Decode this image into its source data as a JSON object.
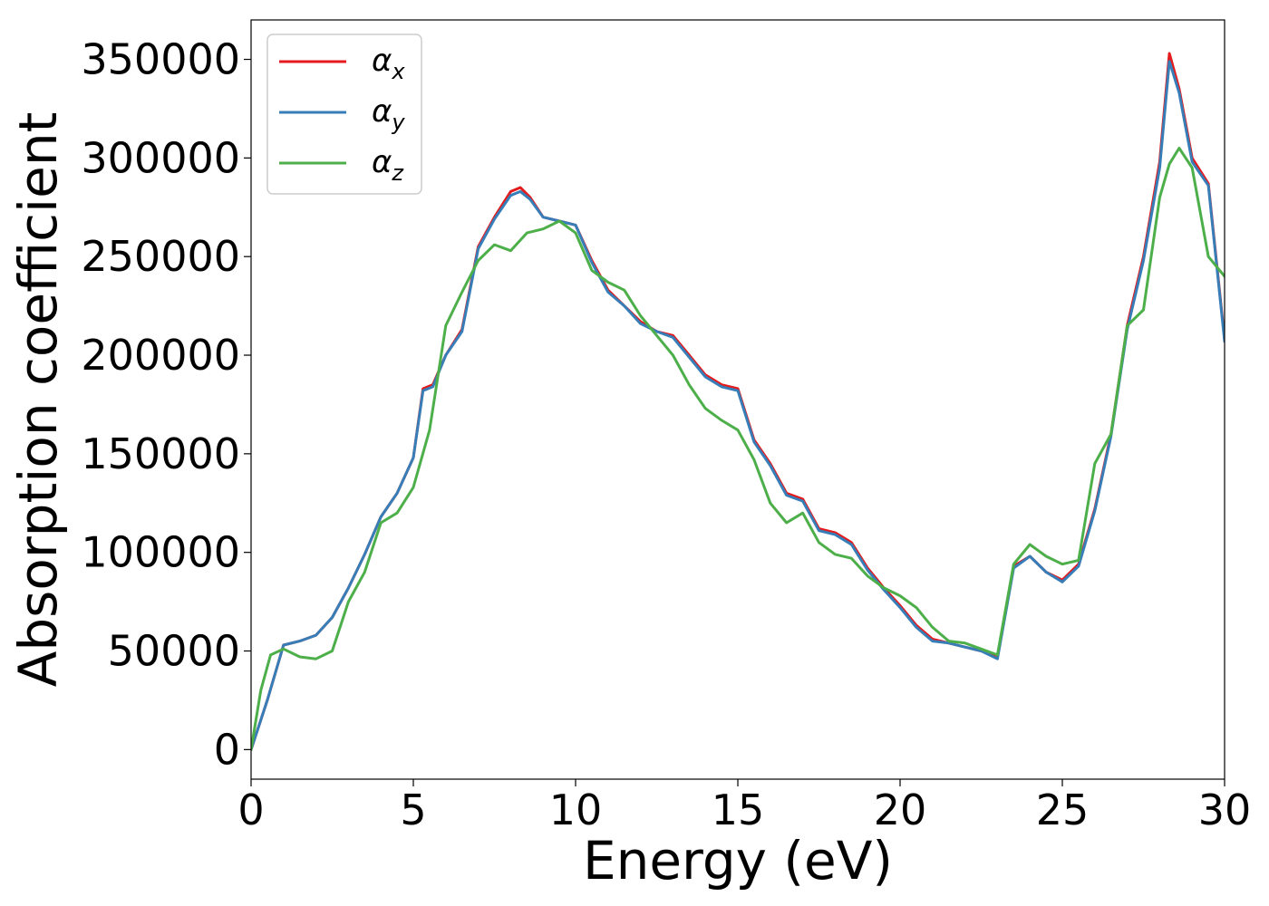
{
  "chart_data": {
    "type": "line",
    "xlabel": "Energy (eV)",
    "ylabel": "Absorption coefficient",
    "xlim": [
      0,
      30
    ],
    "ylim": [
      -15000,
      370000
    ],
    "xticks": [
      0,
      5,
      10,
      15,
      20,
      25,
      30
    ],
    "yticks": [
      0,
      50000,
      100000,
      150000,
      200000,
      250000,
      300000,
      350000
    ],
    "grid": false,
    "legend_position": "top-left",
    "colors": {
      "alpha_x": "#e41a1c",
      "alpha_y": "#377eb8",
      "alpha_z": "#4daf4a"
    },
    "series": [
      {
        "name": "α",
        "subscript": "x",
        "color": "#e41a1c",
        "x": [
          0,
          0.5,
          1.0,
          1.5,
          2.0,
          2.5,
          3.0,
          3.5,
          4.0,
          4.5,
          5.0,
          5.3,
          5.6,
          6.0,
          6.5,
          7.0,
          7.5,
          8.0,
          8.3,
          8.6,
          9.0,
          9.5,
          10.0,
          10.5,
          11.0,
          11.5,
          12.0,
          12.5,
          13.0,
          13.5,
          14.0,
          14.5,
          15.0,
          15.5,
          16.0,
          16.5,
          17.0,
          17.5,
          18.0,
          18.5,
          19.0,
          19.5,
          20.0,
          20.5,
          21.0,
          21.5,
          22.0,
          22.5,
          23.0,
          23.5,
          24.0,
          24.5,
          25.0,
          25.5,
          26.0,
          26.5,
          27.0,
          27.5,
          28.0,
          28.3,
          28.6,
          29.0,
          29.5,
          30.0
        ],
        "values": [
          0,
          25000,
          53000,
          55000,
          58000,
          67000,
          82000,
          99000,
          118000,
          130000,
          148000,
          183000,
          185000,
          200000,
          213000,
          255000,
          270000,
          283000,
          285000,
          280000,
          270000,
          268000,
          266000,
          248000,
          233000,
          225000,
          217000,
          212000,
          210000,
          200000,
          190000,
          185000,
          183000,
          157000,
          145000,
          130000,
          127000,
          112000,
          110000,
          105000,
          92000,
          82000,
          73000,
          63000,
          56000,
          54000,
          52000,
          50000,
          47000,
          93000,
          98000,
          90000,
          86000,
          94000,
          122000,
          160000,
          215000,
          250000,
          298000,
          353000,
          335000,
          300000,
          287000,
          208000
        ]
      },
      {
        "name": "α",
        "subscript": "y",
        "color": "#377eb8",
        "x": [
          0,
          0.5,
          1.0,
          1.5,
          2.0,
          2.5,
          3.0,
          3.5,
          4.0,
          4.5,
          5.0,
          5.3,
          5.6,
          6.0,
          6.5,
          7.0,
          7.5,
          8.0,
          8.3,
          8.6,
          9.0,
          9.5,
          10.0,
          10.5,
          11.0,
          11.5,
          12.0,
          12.5,
          13.0,
          13.5,
          14.0,
          14.5,
          15.0,
          15.5,
          16.0,
          16.5,
          17.0,
          17.5,
          18.0,
          18.5,
          19.0,
          19.5,
          20.0,
          20.5,
          21.0,
          21.5,
          22.0,
          22.5,
          23.0,
          23.5,
          24.0,
          24.5,
          25.0,
          25.5,
          26.0,
          26.5,
          27.0,
          27.5,
          28.0,
          28.3,
          28.6,
          29.0,
          29.5,
          30.0
        ],
        "values": [
          0,
          25000,
          53000,
          55000,
          58000,
          67000,
          82000,
          99000,
          118000,
          130000,
          148000,
          182000,
          184000,
          200000,
          212000,
          254000,
          269000,
          281000,
          283000,
          279000,
          270000,
          268000,
          266000,
          247000,
          232000,
          225000,
          216000,
          212000,
          209000,
          199000,
          189000,
          184000,
          182000,
          156000,
          144000,
          129000,
          126000,
          111000,
          109000,
          104000,
          91000,
          81000,
          72000,
          62000,
          55000,
          54000,
          52000,
          50000,
          46000,
          92000,
          98000,
          90000,
          85000,
          93000,
          121000,
          159000,
          213000,
          248000,
          295000,
          349000,
          333000,
          298000,
          286000,
          207000
        ]
      },
      {
        "name": "α",
        "subscript": "z",
        "color": "#4daf4a",
        "x": [
          0,
          0.3,
          0.6,
          1.0,
          1.5,
          2.0,
          2.5,
          3.0,
          3.5,
          4.0,
          4.5,
          5.0,
          5.5,
          6.0,
          6.5,
          7.0,
          7.5,
          8.0,
          8.5,
          9.0,
          9.5,
          10.0,
          10.5,
          11.0,
          11.5,
          12.0,
          12.5,
          13.0,
          13.5,
          14.0,
          14.5,
          15.0,
          15.5,
          16.0,
          16.5,
          17.0,
          17.5,
          18.0,
          18.5,
          19.0,
          19.5,
          20.0,
          20.5,
          21.0,
          21.5,
          22.0,
          22.5,
          23.0,
          23.5,
          24.0,
          24.5,
          25.0,
          25.5,
          26.0,
          26.5,
          27.0,
          27.5,
          28.0,
          28.3,
          28.6,
          29.0,
          29.5,
          30.0
        ],
        "values": [
          0,
          30000,
          48000,
          51000,
          47000,
          46000,
          50000,
          75000,
          90000,
          115000,
          120000,
          133000,
          162000,
          215000,
          232000,
          248000,
          256000,
          253000,
          262000,
          264000,
          268000,
          262000,
          243000,
          237000,
          233000,
          220000,
          210000,
          200000,
          185000,
          173000,
          167000,
          162000,
          147000,
          125000,
          115000,
          120000,
          105000,
          99000,
          97000,
          88000,
          82000,
          78000,
          72000,
          62000,
          55000,
          54000,
          51000,
          48000,
          94000,
          104000,
          98000,
          94000,
          96000,
          145000,
          160000,
          215000,
          223000,
          280000,
          297000,
          305000,
          295000,
          250000,
          240000
        ]
      }
    ]
  }
}
